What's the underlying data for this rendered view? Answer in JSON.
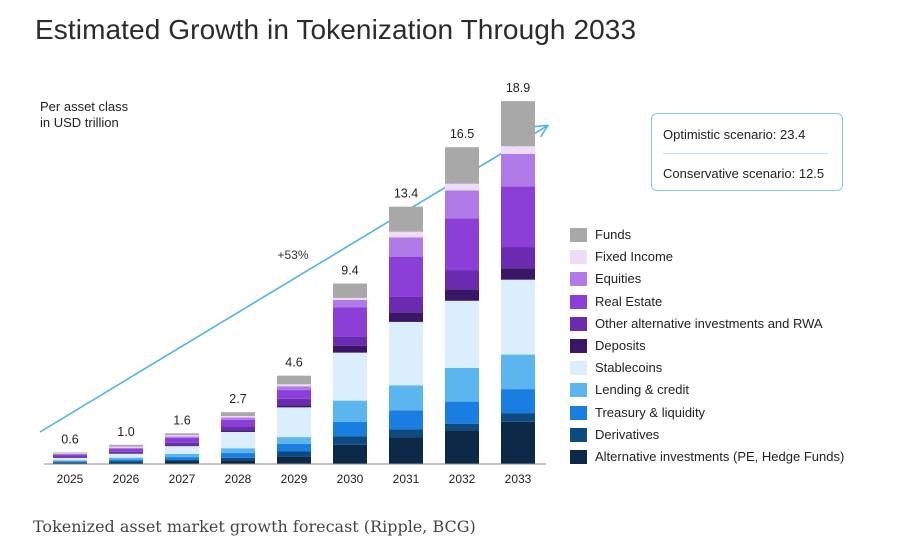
{
  "title": "Estimated Growth in Tokenization Through 2033",
  "caption": "Tokenized asset market growth forecast (Ripple, BCG)",
  "chart_data": {
    "type": "bar",
    "stacked": true,
    "title": "Estimated Growth in Tokenization Through 2033",
    "unit_label_line1": "Per asset class",
    "unit_label_line2": "in USD trillion",
    "categories": [
      "2025",
      "2026",
      "2027",
      "2028",
      "2029",
      "2030",
      "2031",
      "2032",
      "2033"
    ],
    "totals": [
      0.6,
      1.0,
      1.6,
      2.7,
      4.6,
      9.4,
      13.4,
      16.5,
      18.9
    ],
    "total_labels": [
      "0.6",
      "1.0",
      "1.6",
      "2.7",
      "4.6",
      "9.4",
      "13.4",
      "16.5",
      "18.9"
    ],
    "ylim": [
      0,
      20
    ],
    "growth_annotation": "+53%",
    "legend_position": "right",
    "series": [
      {
        "name": "Alternative investments (PE, Hedge Funds)",
        "color": "#0c2a48",
        "values": [
          0.05,
          0.08,
          0.13,
          0.2,
          0.4,
          1.0,
          1.4,
          1.75,
          2.2
        ]
      },
      {
        "name": "Derivatives",
        "color": "#0d4a80",
        "values": [
          0.03,
          0.05,
          0.08,
          0.12,
          0.25,
          0.45,
          0.4,
          0.35,
          0.45
        ]
      },
      {
        "name": "Treasury & liquidity",
        "color": "#1a7ee0",
        "values": [
          0.06,
          0.1,
          0.15,
          0.25,
          0.4,
          0.75,
          1.0,
          1.15,
          1.25
        ]
      },
      {
        "name": "Lending & credit",
        "color": "#5bb6ef",
        "values": [
          0.06,
          0.1,
          0.17,
          0.25,
          0.35,
          1.1,
          1.3,
          1.75,
          1.8
        ]
      },
      {
        "name": "Stablecoins",
        "color": "#dbeefb",
        "values": [
          0.12,
          0.2,
          0.4,
          0.85,
          1.55,
          2.5,
          3.3,
          3.5,
          3.9
        ]
      },
      {
        "name": "Deposits",
        "color": "#3a1766",
        "values": [
          0.02,
          0.03,
          0.05,
          0.08,
          0.1,
          0.35,
          0.5,
          0.6,
          0.6
        ]
      },
      {
        "name": "Other alternative investments and RWA",
        "color": "#6b2bb0",
        "values": [
          0.05,
          0.08,
          0.13,
          0.2,
          0.35,
          0.5,
          0.8,
          1.0,
          1.1
        ]
      },
      {
        "name": "Real Estate",
        "color": "#8b3fd6",
        "values": [
          0.1,
          0.16,
          0.25,
          0.35,
          0.45,
          1.5,
          2.1,
          2.7,
          3.15
        ]
      },
      {
        "name": "Equities",
        "color": "#b07ae8",
        "values": [
          0.03,
          0.05,
          0.08,
          0.12,
          0.2,
          0.4,
          1.0,
          1.45,
          1.7
        ]
      },
      {
        "name": "Fixed Income",
        "color": "#efdcf8",
        "values": [
          0.03,
          0.05,
          0.06,
          0.08,
          0.1,
          0.1,
          0.3,
          0.35,
          0.4
        ]
      },
      {
        "name": "Funds",
        "color": "#a8a8a8",
        "values": [
          0.05,
          0.1,
          0.1,
          0.2,
          0.45,
          0.75,
          1.3,
          1.9,
          2.35
        ]
      }
    ],
    "legend_order": [
      "Funds",
      "Fixed Income",
      "Equities",
      "Real Estate",
      "Other alternative investments and RWA",
      "Deposits",
      "Stablecoins",
      "Lending & credit",
      "Treasury & liquidity",
      "Derivatives",
      "Alternative investments (PE, Hedge Funds)"
    ]
  },
  "scenarios": {
    "optimistic": "Optimistic scenario: 23.4",
    "conservative": "Conservative scenario: 12.5"
  },
  "colors": {
    "arrow": "#4fb3e6",
    "axis": "#8a8a8a",
    "box_border": "#7ecbf0"
  }
}
